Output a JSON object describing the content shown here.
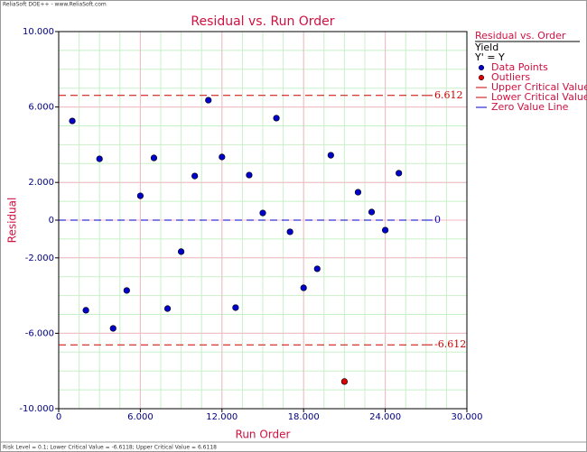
{
  "header": "ReliaSoft DOE++ - www.ReliaSoft.com",
  "footer": "Risk Level = 0.1; Lower Critical Value = -6.6118; Upper Critical Value = 6.6118",
  "chart_data": {
    "type": "scatter",
    "title": "Residual vs. Run Order",
    "x_label": "Run Order",
    "y_label": "Residual",
    "xlim": [
      0,
      30
    ],
    "ylim": [
      -10,
      10
    ],
    "xticks": [
      {
        "value": 0,
        "label": "0"
      },
      {
        "value": 6,
        "label": "6.000"
      },
      {
        "value": 12,
        "label": "12.000"
      },
      {
        "value": 18,
        "label": "18.000"
      },
      {
        "value": 24,
        "label": "24.000"
      },
      {
        "value": 30,
        "label": "30.000"
      }
    ],
    "yticks": [
      {
        "value": -10,
        "label": "-10.000"
      },
      {
        "value": -6,
        "label": "-6.000"
      },
      {
        "value": -2,
        "label": "-2.000"
      },
      {
        "value": 0,
        "label": "0"
      },
      {
        "value": 2,
        "label": "2.000"
      },
      {
        "value": 6,
        "label": "6.000"
      },
      {
        "value": 10,
        "label": "10.000"
      }
    ],
    "grid": true,
    "legend_title": "Residual vs. Order",
    "legend_subtitles": [
      "Yield",
      "Y' = Y"
    ],
    "series": [
      {
        "name": "Data Points",
        "color": "#0000cc",
        "x": [
          1,
          2,
          3,
          4,
          5,
          6,
          7,
          8,
          9,
          10,
          11,
          12,
          13,
          14,
          15,
          16,
          17,
          18,
          19,
          20,
          22,
          23,
          24,
          25
        ],
        "values": [
          5.26,
          -4.78,
          3.25,
          -5.74,
          -3.73,
          1.29,
          3.3,
          -4.69,
          -1.67,
          2.34,
          6.36,
          3.35,
          -4.64,
          2.39,
          0.38,
          5.41,
          -0.62,
          -3.59,
          -2.58,
          3.44,
          1.48,
          0.43,
          -0.53,
          2.49
        ]
      },
      {
        "name": "Outliers",
        "color": "#dd0000",
        "x": [
          21
        ],
        "values": [
          -8.56
        ]
      }
    ],
    "reference_lines": [
      {
        "name": "Upper Critical Value",
        "value": 6.612,
        "value_label": "6.612",
        "color": "#cc0000"
      },
      {
        "name": "Lower Critical Value",
        "value": -6.612,
        "value_label": "-6.612",
        "color": "#cc0000"
      },
      {
        "name": "Zero Value Line",
        "value": 0,
        "value_label": "0",
        "color": "#0000cc"
      }
    ]
  }
}
